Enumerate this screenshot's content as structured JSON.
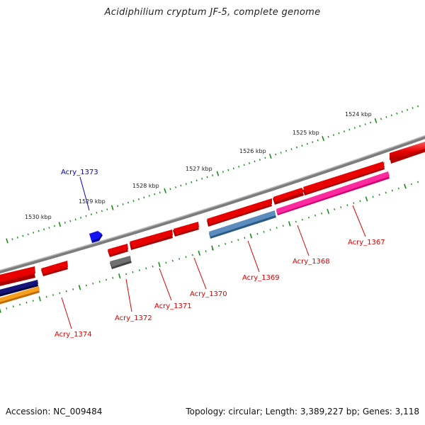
{
  "title": "Acidiphilium cryptum JF-5, complete genome",
  "footer": {
    "accession": "Accession: NC_009484",
    "summary": "Topology: circular; Length: 3,389,227 bp; Genes: 3,118"
  },
  "ruler": [
    {
      "label": "1524 kbp"
    },
    {
      "label": "1525 kbp"
    },
    {
      "label": "1526 kbp"
    },
    {
      "label": "1527 kbp"
    },
    {
      "label": "1528 kbp"
    },
    {
      "label": "1529 kbp"
    },
    {
      "label": "1530 kbp"
    }
  ],
  "gene_labels": [
    {
      "label": "Acry_1367",
      "color": "#e00000"
    },
    {
      "label": "Acry_1368",
      "color": "#e00000"
    },
    {
      "label": "Acry_1369",
      "color": "#e00000"
    },
    {
      "label": "Acry_1370",
      "color": "#e00000"
    },
    {
      "label": "Acry_1371",
      "color": "#e00000"
    },
    {
      "label": "Acry_1372",
      "color": "#e00000"
    },
    {
      "label": "Acry_1373",
      "color": "#0000cc"
    },
    {
      "label": "Acry_1374",
      "color": "#e00000"
    }
  ],
  "colors": {
    "forward_gene": "#ee1111",
    "reverse_gene": "#ee1111",
    "backbone": "#8a8a8a",
    "tick": "#1a8a1a",
    "blue_feature": "#1010ee",
    "steelblue_feature": "#4f7fb0",
    "magenta_feature": "#ff2aa0",
    "gray_feature": "#666666",
    "navy_feature": "#101070",
    "orange_feature": "#f59a1a"
  }
}
